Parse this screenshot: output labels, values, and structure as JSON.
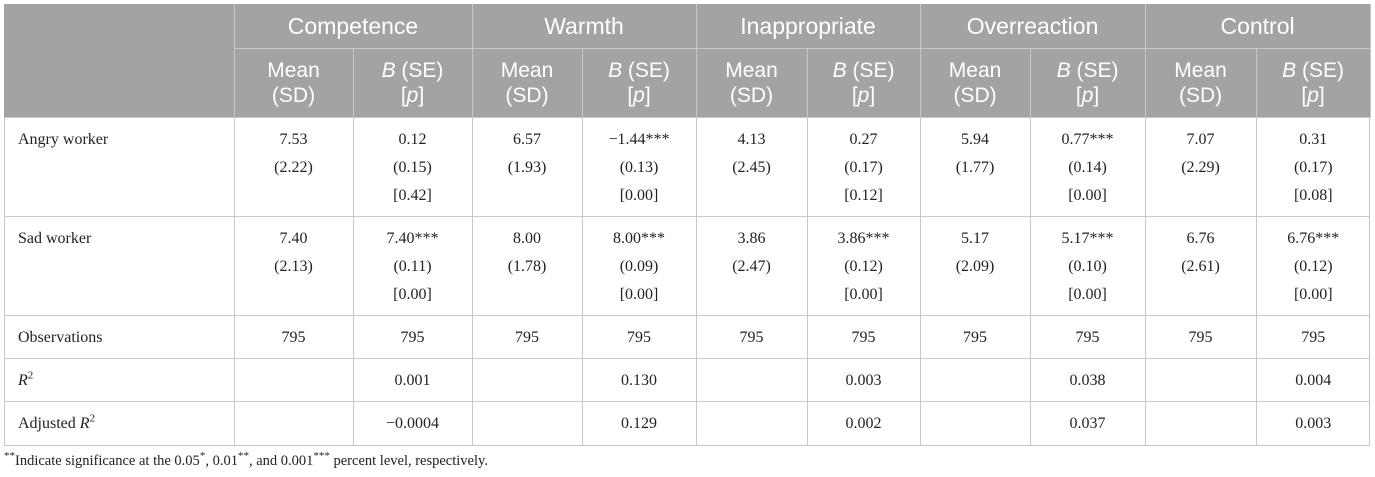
{
  "table": {
    "groups": [
      "Competence",
      "Warmth",
      "Inappropriate",
      "Overreaction",
      "Control"
    ],
    "sub_mean_line1": "Mean",
    "sub_mean_line2": "(SD)",
    "sub_b_italic": "B",
    "sub_b_rest": " (SE)",
    "sub_p_open": "[",
    "sub_p_italic": "p",
    "sub_p_close": "]",
    "rows": {
      "angry": {
        "label": "Angry worker",
        "cells": [
          [
            "7.53",
            "(2.22)",
            ""
          ],
          [
            "0.12",
            "(0.15)",
            "[0.42]"
          ],
          [
            "6.57",
            "(1.93)",
            ""
          ],
          [
            "−1.44***",
            "(0.13)",
            "[0.00]"
          ],
          [
            "4.13",
            "(2.45)",
            ""
          ],
          [
            "0.27",
            "(0.17)",
            "[0.12]"
          ],
          [
            "5.94",
            "(1.77)",
            ""
          ],
          [
            "0.77***",
            "(0.14)",
            "[0.00]"
          ],
          [
            "7.07",
            "(2.29)",
            ""
          ],
          [
            "0.31",
            "(0.17)",
            "[0.08]"
          ]
        ]
      },
      "sad": {
        "label": "Sad worker",
        "cells": [
          [
            "7.40",
            "(2.13)",
            ""
          ],
          [
            "7.40***",
            "(0.11)",
            "[0.00]"
          ],
          [
            "8.00",
            "(1.78)",
            ""
          ],
          [
            "8.00***",
            "(0.09)",
            "[0.00]"
          ],
          [
            "3.86",
            "(2.47)",
            ""
          ],
          [
            "3.86***",
            "(0.12)",
            "[0.00]"
          ],
          [
            "5.17",
            "(2.09)",
            ""
          ],
          [
            "5.17***",
            "(0.10)",
            "[0.00]"
          ],
          [
            "6.76",
            "(2.61)",
            ""
          ],
          [
            "6.76***",
            "(0.12)",
            "[0.00]"
          ]
        ]
      },
      "obs": {
        "label": "Observations",
        "cells": [
          "795",
          "795",
          "795",
          "795",
          "795",
          "795",
          "795",
          "795",
          "795",
          "795"
        ]
      },
      "r2": {
        "label_main": "R",
        "label_sup": "2",
        "cells": [
          "",
          "0.001",
          "",
          "0.130",
          "",
          "0.003",
          "",
          "0.038",
          "",
          "0.004"
        ]
      },
      "adjr2": {
        "label_prefix": "Adjusted ",
        "label_main": "R",
        "label_sup": "2",
        "cells": [
          "",
          "−0.0004",
          "",
          "0.129",
          "",
          "0.002",
          "",
          "0.037",
          "",
          "0.003"
        ]
      }
    }
  },
  "note": {
    "lead_sup": "**",
    "text_a": "Indicate significance at the 0.05",
    "sup_a": "*",
    "text_b": ", 0.01",
    "sup_b": "**",
    "text_c": ", and 0.001",
    "sup_c": "***",
    "text_d": " percent level, respectively."
  },
  "colors": {
    "header_bg": "#a3a3a3",
    "header_text": "#ffffff",
    "grid": "#c9c9c9"
  }
}
